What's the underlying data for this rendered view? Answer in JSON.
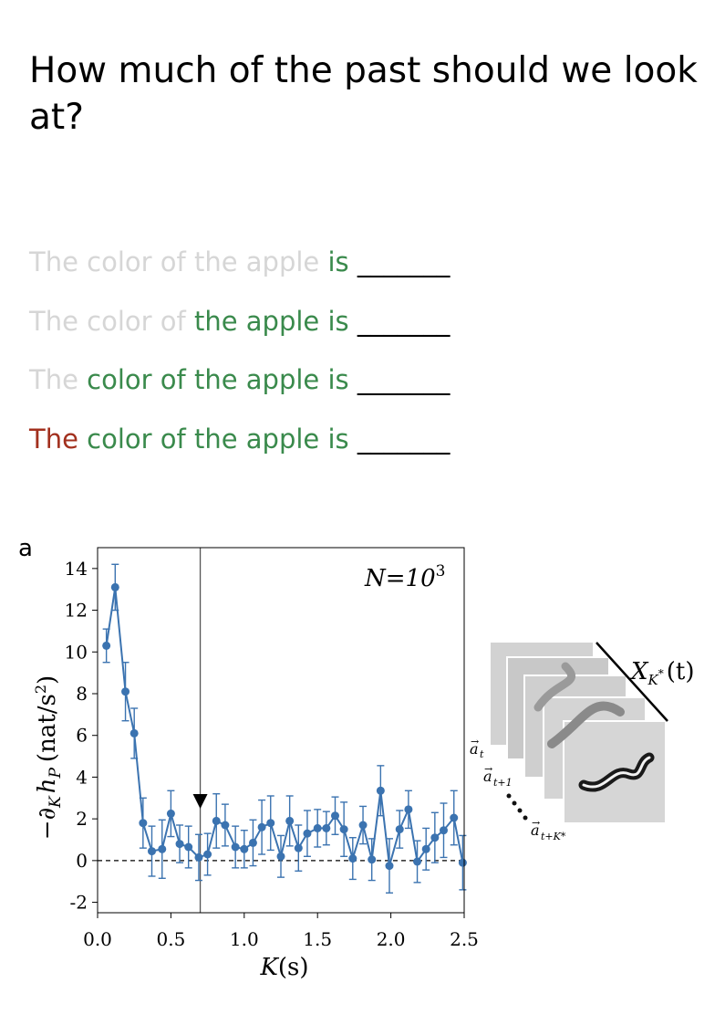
{
  "title": "How much of the past should we look at?",
  "sentences": [
    {
      "red": "",
      "grey": "The color of the apple ",
      "green": "is",
      "blank": " _______"
    },
    {
      "red": "",
      "grey": "The color of ",
      "green": "the apple is",
      "blank": " _______"
    },
    {
      "red": "",
      "grey": "The ",
      "green": "color of the apple is",
      "blank": " _______"
    },
    {
      "red": "The",
      "grey": "",
      "green": " color of the apple is",
      "blank": " _______"
    }
  ],
  "panel_label": "a",
  "colors": {
    "series": "#3b73b0",
    "grey": "#d6d6d6",
    "green": "#3a8a4c",
    "red": "#a2301e"
  },
  "chart_data": {
    "type": "line",
    "annotation": "N=10",
    "annotation_sup": "3",
    "ylabel": "−∂",
    "ylabel_K": "K",
    "ylabel_h": "h",
    "ylabel_P": "P",
    "ylabel_unit": "(nat/s",
    "ylabel_unit_sup": "2",
    "ylabel_unit_close": ")",
    "xlabel": "K",
    "xlabel_unit": "(s)",
    "xlim": [
      0.0,
      2.5
    ],
    "ylim": [
      -2.5,
      15
    ],
    "xticks": [
      "0.0",
      "0.5",
      "1.0",
      "1.5",
      "2.0",
      "2.5"
    ],
    "yticks": [
      "-2",
      "0",
      "2",
      "4",
      "6",
      "8",
      "10",
      "12",
      "14"
    ],
    "reference_lines": {
      "vertical_x": 0.7,
      "horizontal_dashed_y": 0
    },
    "marker_x": 0.7,
    "series": [
      {
        "points": [
          [
            0.06,
            10.3,
            0.8
          ],
          [
            0.12,
            13.1,
            1.1
          ],
          [
            0.19,
            8.1,
            1.4
          ],
          [
            0.25,
            6.1,
            1.2
          ],
          [
            0.31,
            1.8,
            1.2
          ],
          [
            0.37,
            0.45,
            1.2
          ],
          [
            0.44,
            0.55,
            1.4
          ],
          [
            0.5,
            2.25,
            1.1
          ],
          [
            0.56,
            0.8,
            0.9
          ],
          [
            0.62,
            0.65,
            1.0
          ],
          [
            0.69,
            0.15,
            1.1
          ],
          [
            0.75,
            0.3,
            1.0
          ],
          [
            0.81,
            1.9,
            1.3
          ],
          [
            0.87,
            1.7,
            1.0
          ],
          [
            0.94,
            0.65,
            1.0
          ],
          [
            1.0,
            0.55,
            0.9
          ],
          [
            1.06,
            0.85,
            1.1
          ],
          [
            1.12,
            1.6,
            1.3
          ],
          [
            1.18,
            1.8,
            1.3
          ],
          [
            1.25,
            0.2,
            1.0
          ],
          [
            1.31,
            1.9,
            1.2
          ],
          [
            1.37,
            0.6,
            1.1
          ],
          [
            1.43,
            1.3,
            1.1
          ],
          [
            1.5,
            1.55,
            0.9
          ],
          [
            1.56,
            1.55,
            0.8
          ],
          [
            1.62,
            2.15,
            0.9
          ],
          [
            1.68,
            1.5,
            1.3
          ],
          [
            1.74,
            0.1,
            1.0
          ],
          [
            1.81,
            1.7,
            0.9
          ],
          [
            1.87,
            0.05,
            1.0
          ],
          [
            1.93,
            3.35,
            1.2
          ],
          [
            1.99,
            -0.25,
            1.3
          ],
          [
            2.06,
            1.5,
            0.9
          ],
          [
            2.12,
            2.45,
            0.9
          ],
          [
            2.18,
            -0.05,
            1.0
          ],
          [
            2.24,
            0.55,
            1.0
          ],
          [
            2.3,
            1.1,
            1.2
          ],
          [
            2.36,
            1.45,
            1.3
          ],
          [
            2.43,
            2.05,
            1.3
          ],
          [
            2.49,
            -0.1,
            1.3
          ]
        ]
      }
    ]
  },
  "diagram": {
    "x_label": "X",
    "x_sub": "K",
    "x_sub_star": "*",
    "x_arg": "(t)",
    "frame_labels": [
      {
        "base": "a",
        "sub": "t"
      },
      {
        "base": "a",
        "sub": "t+1"
      },
      {
        "base": "a",
        "sub": "t+K*"
      }
    ]
  }
}
